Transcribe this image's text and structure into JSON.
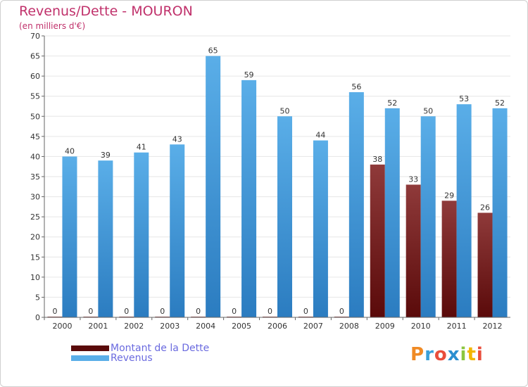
{
  "title": "Revenus/Dette - MOURON",
  "subtitle": "(en milliers d'€)",
  "colors": {
    "title": "#c0316b",
    "axis_text": "#333333",
    "grid": "#e6e6e6",
    "dette_top": "#8f3a3a",
    "dette_bottom": "#5a0a0a",
    "revenus_top": "#5aaee8",
    "revenus_bottom": "#2b7cc0",
    "legend_text": "#6a6adf"
  },
  "legend": {
    "dette_label": "Montant de la Dette",
    "revenus_label": "Revenus"
  },
  "logo_text": "Proxiti",
  "chart_data": {
    "type": "bar",
    "title": "Revenus/Dette - MOURON",
    "subtitle": "(en milliers d'€)",
    "categories": [
      "2000",
      "2001",
      "2002",
      "2003",
      "2004",
      "2005",
      "2006",
      "2007",
      "2008",
      "2009",
      "2010",
      "2011",
      "2012"
    ],
    "series": [
      {
        "name": "Montant de la Dette",
        "values": [
          0,
          0,
          0,
          0,
          0,
          0,
          0,
          0,
          0,
          38,
          33,
          29,
          26
        ]
      },
      {
        "name": "Revenus",
        "values": [
          40,
          39,
          41,
          43,
          65,
          59,
          50,
          44,
          56,
          52,
          50,
          53,
          52
        ]
      }
    ],
    "ylim": [
      0,
      70
    ],
    "yticks": [
      0,
      5,
      10,
      15,
      20,
      25,
      30,
      35,
      40,
      45,
      50,
      55,
      60,
      65,
      70
    ],
    "grid": true,
    "legend_position": "bottom-left"
  }
}
